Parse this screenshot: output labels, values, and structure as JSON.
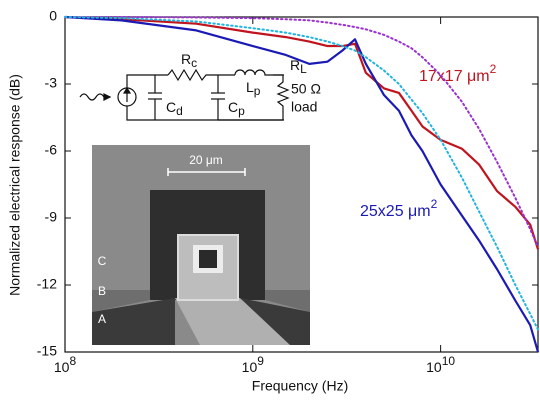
{
  "chart_data": {
    "type": "line",
    "x_label": "Frequency (Hz)",
    "y_label": "Normalized electrical response (dB)",
    "xscale": "log",
    "xlim": [
      100000000,
      33000000000
    ],
    "ylim": [
      -15,
      0
    ],
    "xticks": [
      {
        "value": 100000000,
        "label": "10",
        "exponent": "8"
      },
      {
        "value": 1000000000,
        "label": "10",
        "exponent": "9"
      },
      {
        "value": 10000000000,
        "label": "10",
        "exponent": "10"
      }
    ],
    "yticks": [
      0,
      -3,
      -6,
      -9,
      -12,
      -15
    ],
    "x": [
      100000000,
      200000000,
      500000000,
      1000000000,
      1500000000,
      2000000000,
      2500000000,
      3000000000,
      3500000000,
      4000000000,
      5000000000,
      6000000000,
      7000000000,
      8000000000,
      10000000000,
      13000000000,
      16000000000,
      20000000000,
      25000000000,
      30000000000,
      33000000000
    ],
    "series": [
      {
        "color": "#c0141e",
        "style": "solid",
        "values": [
          0,
          -0.1,
          -0.3,
          -0.7,
          -0.9,
          -1.1,
          -1.3,
          -1.3,
          -1.2,
          -2.5,
          -3.2,
          -3.4,
          -4.2,
          -4.9,
          -5.5,
          -5.9,
          -6.6,
          -7.8,
          -8.5,
          -9.3,
          -10.4
        ]
      },
      {
        "color": "#1a1ab4",
        "style": "solid",
        "values": [
          0,
          -0.15,
          -0.6,
          -1.3,
          -1.7,
          -2.1,
          -2.0,
          -1.5,
          -1.0,
          -2.1,
          -3.5,
          -4.2,
          -5.3,
          -6.0,
          -7.5,
          -8.9,
          -10.0,
          -11.3,
          -12.7,
          -13.8,
          -15.0
        ]
      },
      {
        "color": "#9b30d0",
        "style": "dotted",
        "values": [
          0,
          0,
          -0.02,
          -0.05,
          -0.1,
          -0.15,
          -0.25,
          -0.35,
          -0.45,
          -0.55,
          -0.8,
          -1.1,
          -1.4,
          -1.8,
          -2.6,
          -3.8,
          -5.0,
          -6.5,
          -8.1,
          -9.5,
          -10.3
        ]
      },
      {
        "color": "#22b4e0",
        "style": "dotted",
        "values": [
          0,
          -0.05,
          -0.2,
          -0.5,
          -0.7,
          -0.9,
          -1.1,
          -1.3,
          -1.5,
          -1.8,
          -2.4,
          -3.0,
          -3.7,
          -4.3,
          -5.5,
          -7.2,
          -8.7,
          -10.3,
          -12.0,
          -13.3,
          -14.0
        ]
      }
    ],
    "annotations": [
      {
        "text": "17x17 μm",
        "superscript": "2",
        "color": "#c0141e"
      },
      {
        "text": "25x25 μm",
        "superscript": "2",
        "color": "#1a1ab4"
      }
    ],
    "circuit_labels": [
      {
        "text": "C",
        "subscript": "d"
      },
      {
        "text": "R",
        "subscript": "c"
      },
      {
        "text": "C",
        "subscript": "p"
      },
      {
        "text": "L",
        "subscript": "p"
      },
      {
        "text": "R",
        "subscript": "L"
      },
      {
        "text": "50 Ω"
      },
      {
        "text": "load"
      }
    ],
    "image_labels": [
      "20 μm",
      "A",
      "B",
      "C"
    ]
  }
}
